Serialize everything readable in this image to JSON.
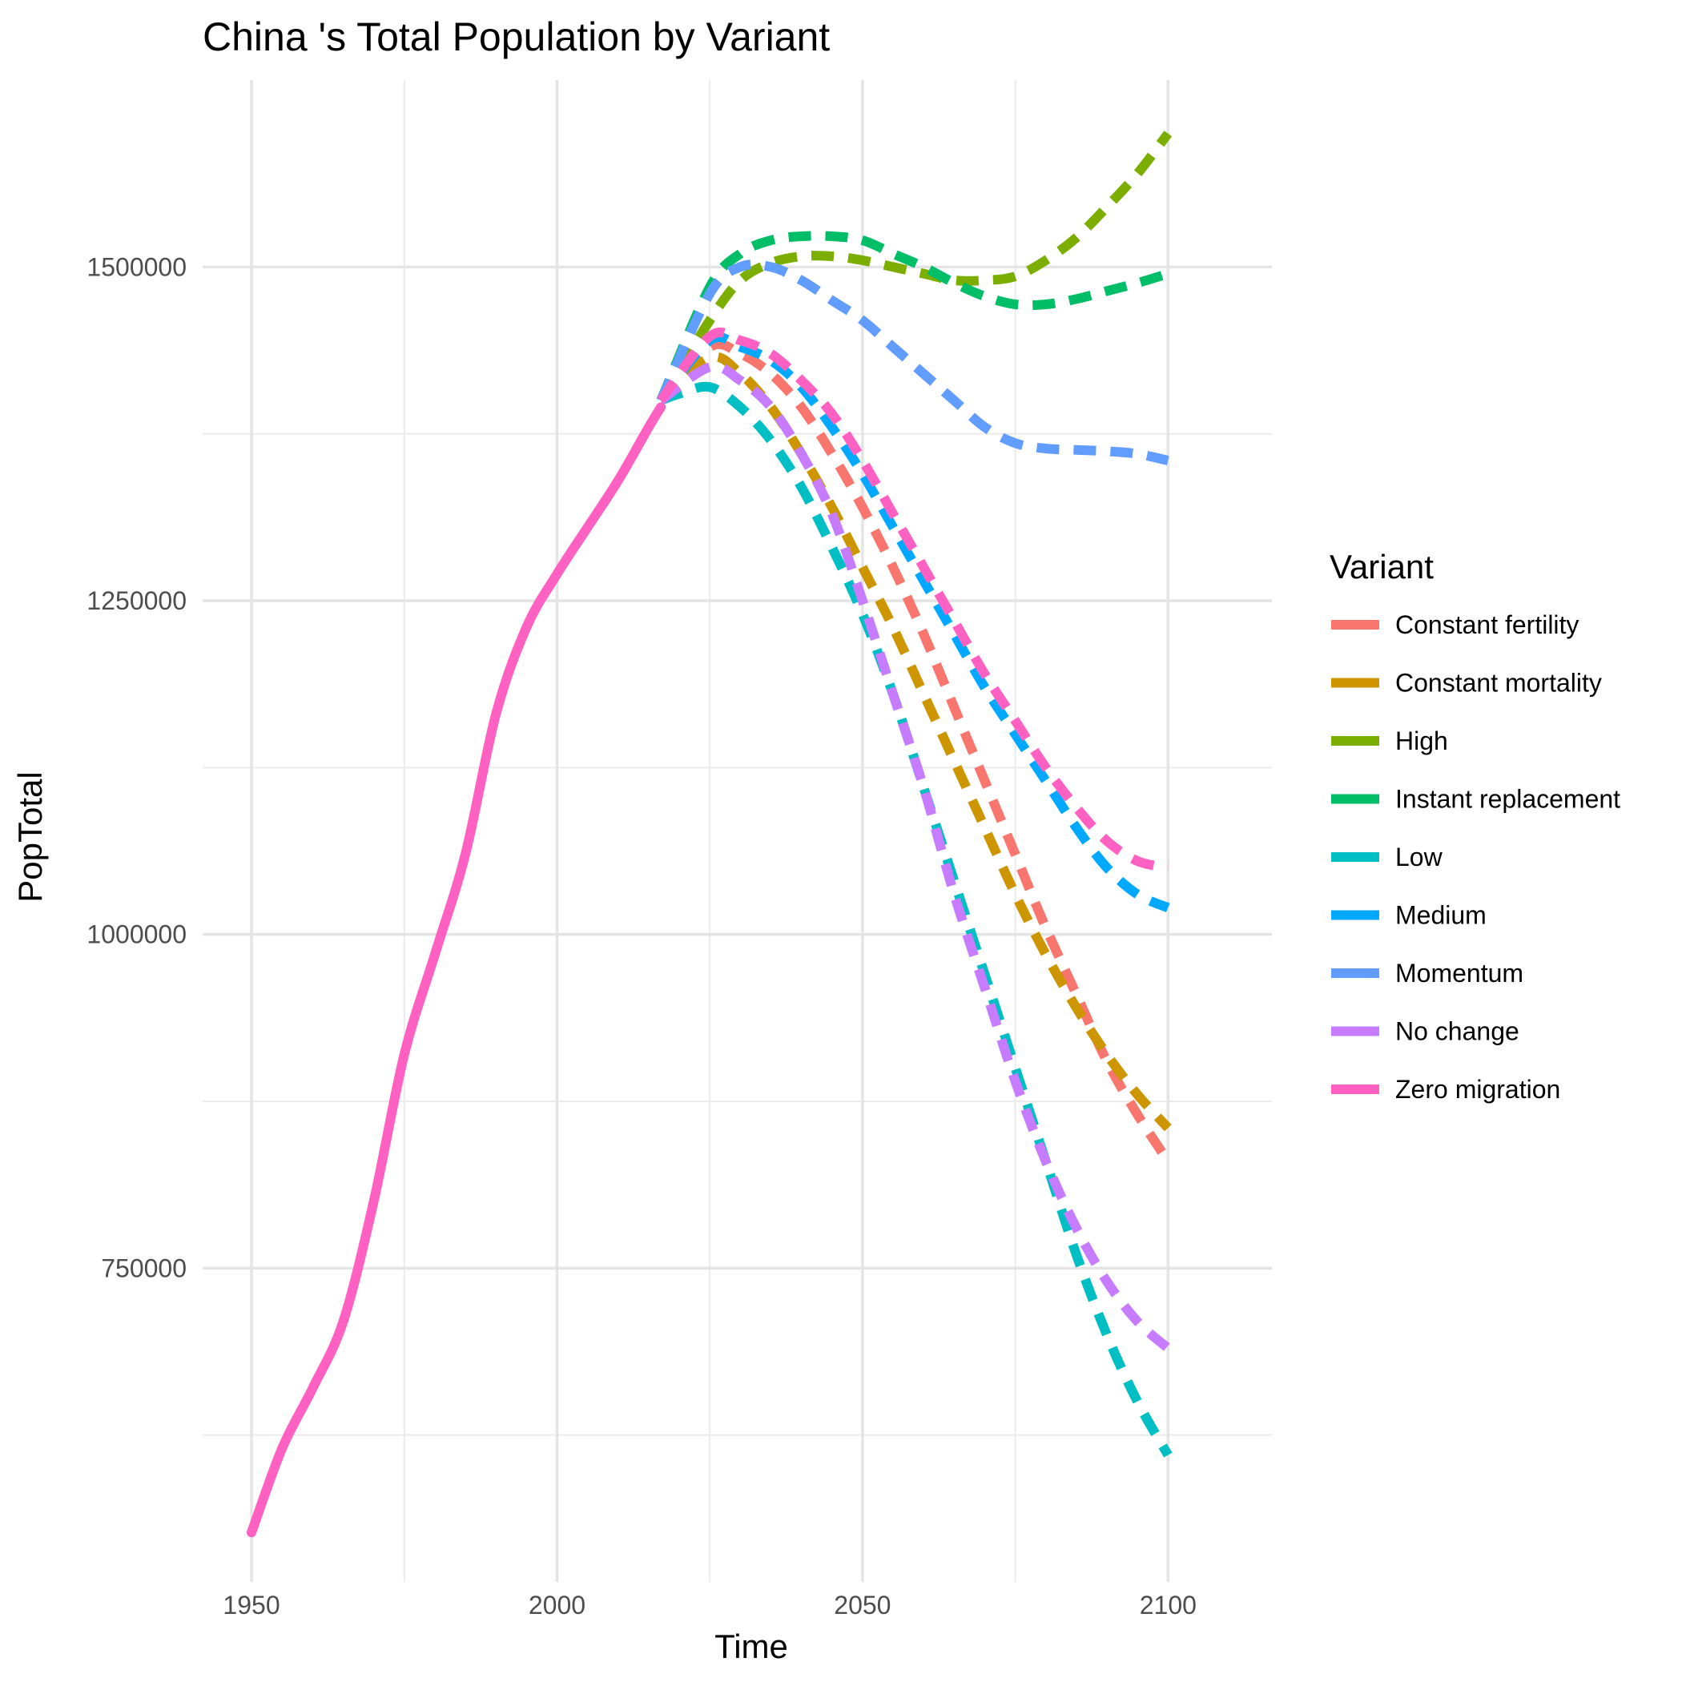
{
  "chart_data": {
    "type": "line",
    "title": "China 's Total Population by Variant",
    "xlabel": "Time",
    "ylabel": "PopTotal",
    "xlim": [
      1942,
      2117
    ],
    "ylim": [
      515000,
      1640000
    ],
    "x_ticks": [
      1950,
      2000,
      2050,
      2100
    ],
    "y_ticks": [
      750000,
      1000000,
      1250000,
      1500000
    ],
    "y_minor_ticks": [
      625000,
      875000,
      1125000,
      1375000
    ],
    "x_minor_ticks": [
      1975,
      2025,
      2075
    ],
    "grid": true,
    "legend": {
      "title": "Variant",
      "position": "right"
    },
    "historical": {
      "name": "Zero migration",
      "x": [
        1950,
        1955,
        1960,
        1965,
        1970,
        1975,
        1980,
        1985,
        1990,
        1995,
        2000,
        2005,
        2010,
        2015,
        2017
      ],
      "y": [
        552000,
        615000,
        660000,
        710000,
        800000,
        910000,
        985000,
        1060000,
        1165000,
        1230000,
        1270000,
        1305000,
        1340000,
        1380000,
        1395000
      ]
    },
    "series": [
      {
        "name": "Constant fertility",
        "color": "#F8766D",
        "x": [
          2017,
          2025,
          2030,
          2035,
          2040,
          2045,
          2050,
          2055,
          2060,
          2065,
          2070,
          2075,
          2080,
          2085,
          2090,
          2095,
          2100
        ],
        "y": [
          1400000,
          1440000,
          1435000,
          1420000,
          1395000,
          1360000,
          1320000,
          1275000,
          1225000,
          1170000,
          1115000,
          1060000,
          1005000,
          955000,
          905000,
          865000,
          830000
        ]
      },
      {
        "name": "Constant mortality",
        "color": "#CD9600",
        "x": [
          2017,
          2025,
          2030,
          2035,
          2040,
          2045,
          2050,
          2055,
          2060,
          2065,
          2070,
          2075,
          2080,
          2085,
          2090,
          2095,
          2100
        ],
        "y": [
          1400000,
          1432000,
          1420000,
          1395000,
          1360000,
          1320000,
          1275000,
          1230000,
          1180000,
          1130000,
          1080000,
          1030000,
          985000,
          945000,
          910000,
          880000,
          855000
        ]
      },
      {
        "name": "High",
        "color": "#7CAE00",
        "x": [
          2017,
          2025,
          2030,
          2035,
          2040,
          2045,
          2050,
          2055,
          2060,
          2065,
          2070,
          2075,
          2080,
          2085,
          2090,
          2095,
          2100
        ],
        "y": [
          1400000,
          1460000,
          1490000,
          1503000,
          1508000,
          1508000,
          1505000,
          1500000,
          1495000,
          1490000,
          1490000,
          1493000,
          1505000,
          1522000,
          1545000,
          1570000,
          1600000
        ]
      },
      {
        "name": "Instant replacement",
        "color": "#00BE67",
        "x": [
          2017,
          2025,
          2030,
          2035,
          2040,
          2045,
          2050,
          2055,
          2060,
          2065,
          2070,
          2075,
          2080,
          2085,
          2090,
          2095,
          2100
        ],
        "y": [
          1400000,
          1485000,
          1510000,
          1520000,
          1523000,
          1523000,
          1520000,
          1510000,
          1500000,
          1488000,
          1478000,
          1472000,
          1472000,
          1476000,
          1482000,
          1488000,
          1495000
        ]
      },
      {
        "name": "Low",
        "color": "#00BFC4",
        "x": [
          2017,
          2020,
          2025,
          2030,
          2035,
          2040,
          2045,
          2050,
          2055,
          2060,
          2065,
          2070,
          2075,
          2080,
          2085,
          2090,
          2095,
          2100
        ],
        "y": [
          1400000,
          1405000,
          1410000,
          1395000,
          1370000,
          1335000,
          1290000,
          1240000,
          1180000,
          1110000,
          1040000,
          970000,
          900000,
          830000,
          760000,
          700000,
          650000,
          610000
        ]
      },
      {
        "name": "Medium",
        "color": "#00A9FF",
        "x": [
          2017,
          2025,
          2030,
          2035,
          2040,
          2045,
          2050,
          2055,
          2060,
          2065,
          2070,
          2075,
          2080,
          2085,
          2090,
          2095,
          2100
        ],
        "y": [
          1400000,
          1445000,
          1440000,
          1430000,
          1410000,
          1380000,
          1345000,
          1305000,
          1265000,
          1225000,
          1185000,
          1150000,
          1115000,
          1080000,
          1050000,
          1030000,
          1020000
        ]
      },
      {
        "name": "Momentum",
        "color": "#619CFF",
        "x": [
          2017,
          2025,
          2030,
          2035,
          2040,
          2045,
          2050,
          2055,
          2060,
          2065,
          2070,
          2075,
          2080,
          2085,
          2090,
          2095,
          2100
        ],
        "y": [
          1400000,
          1480000,
          1500000,
          1500000,
          1490000,
          1475000,
          1460000,
          1440000,
          1420000,
          1400000,
          1380000,
          1368000,
          1364000,
          1363000,
          1362000,
          1360000,
          1355000
        ]
      },
      {
        "name": "No change",
        "color": "#C77CFF",
        "x": [
          2017,
          2025,
          2030,
          2035,
          2040,
          2045,
          2050,
          2055,
          2060,
          2065,
          2070,
          2075,
          2080,
          2085,
          2090,
          2095,
          2100
        ],
        "y": [
          1400000,
          1425000,
          1415000,
          1395000,
          1360000,
          1315000,
          1250000,
          1180000,
          1110000,
          1030000,
          960000,
          890000,
          830000,
          780000,
          740000,
          710000,
          690000
        ]
      },
      {
        "name": "Zero migration",
        "color": "#FF61C3",
        "x": [
          2017,
          2025,
          2030,
          2035,
          2040,
          2045,
          2050,
          2055,
          2060,
          2065,
          2070,
          2075,
          2080,
          2085,
          2090,
          2095,
          2100
        ],
        "y": [
          1400000,
          1448000,
          1445000,
          1435000,
          1415000,
          1390000,
          1355000,
          1315000,
          1275000,
          1235000,
          1195000,
          1160000,
          1125000,
          1095000,
          1070000,
          1055000,
          1050000
        ]
      }
    ]
  }
}
